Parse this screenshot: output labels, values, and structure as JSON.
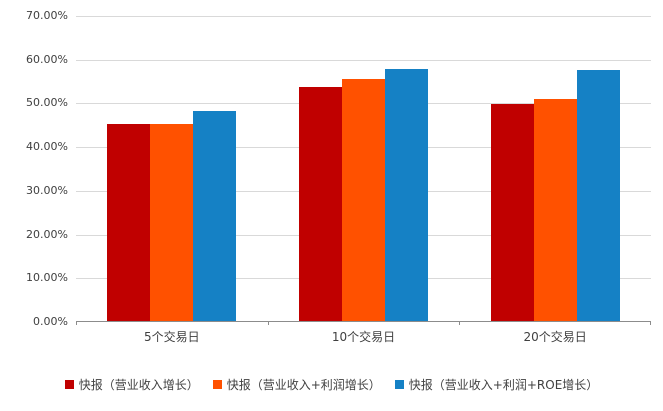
{
  "chart_data": {
    "type": "bar",
    "title": "",
    "xlabel": "",
    "ylabel": "",
    "categories": [
      "5个交易日",
      "10个交易日",
      "20个交易日"
    ],
    "series": [
      {
        "name": "快报（营业收入增长）",
        "color": "#c00000",
        "values": [
          45.0,
          53.5,
          49.7
        ]
      },
      {
        "name": "快报（营业收入+利润增长）",
        "color": "#ff5100",
        "values": [
          45.0,
          55.3,
          50.8
        ]
      },
      {
        "name": "快报（营业收入+利润+ROE增长）",
        "color": "#1581c5",
        "values": [
          48.1,
          57.6,
          57.4
        ]
      }
    ],
    "ylim": [
      0,
      70
    ],
    "ytick_labels": [
      "0.00%",
      "10.00%",
      "20.00%",
      "30.00%",
      "40.00%",
      "50.00%",
      "60.00%",
      "70.00%"
    ],
    "grid": true,
    "gridline_color": "#d9d9d9",
    "legend_position": "bottom"
  }
}
